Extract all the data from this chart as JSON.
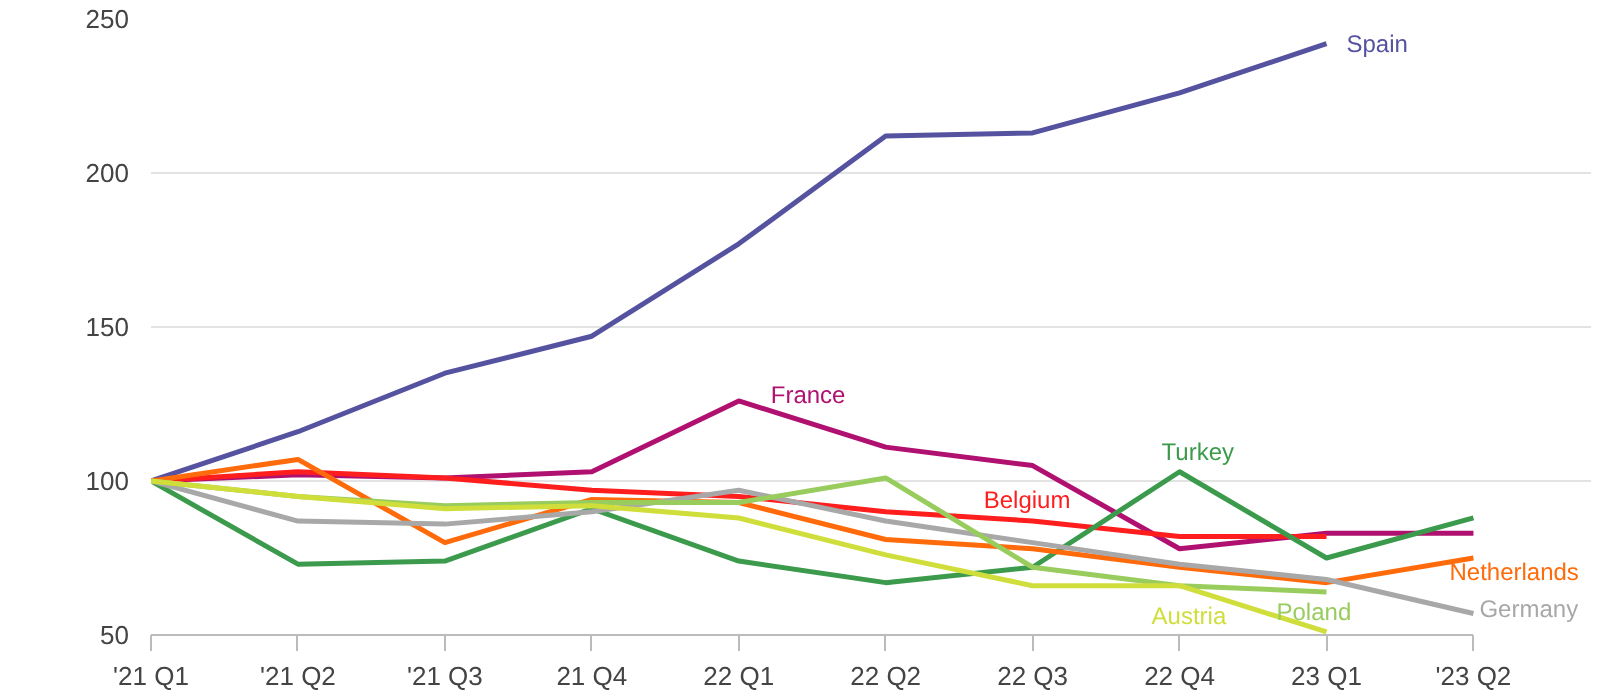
{
  "chart_data": {
    "type": "line",
    "categories": [
      "'21 Q1",
      "'21 Q2",
      "'21 Q3",
      "21 Q4",
      "22 Q1",
      "22 Q2",
      "22 Q3",
      "22 Q4",
      "23 Q1",
      "'23 Q2"
    ],
    "ylim": [
      50,
      250
    ],
    "yticks": [
      50,
      100,
      150,
      200,
      250
    ],
    "grid": "y",
    "legend": false,
    "marker": "none",
    "line_style": "solid",
    "series": [
      {
        "name": "Spain",
        "color": "#5552a0",
        "values": [
          100,
          116,
          135,
          147,
          177,
          212,
          213,
          226,
          242,
          null
        ]
      },
      {
        "name": "France",
        "color": "#b0106f",
        "values": [
          100,
          102,
          101,
          103,
          126,
          111,
          105,
          78,
          83,
          83
        ]
      },
      {
        "name": "Belgium",
        "color": "#ff1e1e",
        "values": [
          100,
          103,
          101,
          97,
          95,
          90,
          87,
          82,
          82,
          null
        ]
      },
      {
        "name": "Turkey",
        "color": "#3b9a4c",
        "values": [
          100,
          73,
          74,
          91,
          74,
          67,
          72,
          103,
          75,
          88
        ]
      },
      {
        "name": "Netherlands",
        "color": "#ff6a0a",
        "values": [
          100,
          107,
          80,
          94,
          93,
          81,
          78,
          72,
          67,
          75
        ]
      },
      {
        "name": "Germany",
        "color": "#a8a8a8",
        "values": [
          100,
          87,
          86,
          90,
          97,
          87,
          80,
          73,
          68,
          57
        ]
      },
      {
        "name": "Poland",
        "color": "#98cc5c",
        "values": [
          100,
          95,
          92,
          93,
          93,
          101,
          72,
          66,
          64,
          null
        ]
      },
      {
        "name": "Austria",
        "color": "#d0de3c",
        "values": [
          100,
          95,
          91,
          92,
          88,
          76,
          66,
          66,
          51,
          null
        ]
      }
    ]
  }
}
